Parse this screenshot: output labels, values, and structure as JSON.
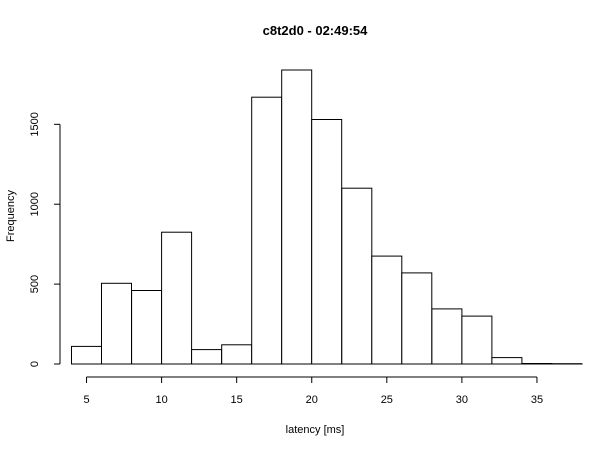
{
  "chart_data": {
    "type": "bar",
    "title": "c8t2d0 - 02:49:54",
    "xlabel": "latency [ms]",
    "ylabel": "Frequency",
    "bin_edges": [
      4,
      6,
      8,
      10,
      12,
      14,
      16,
      18,
      20,
      22,
      24,
      26,
      28,
      30,
      32,
      34,
      36,
      38
    ],
    "values": [
      110,
      505,
      460,
      825,
      90,
      120,
      1670,
      1840,
      1530,
      1100,
      675,
      570,
      345,
      300,
      40,
      3,
      2
    ],
    "xlim": [
      2.5,
      38
    ],
    "ylim": [
      0,
      1840
    ],
    "x_ticks": [
      5,
      10,
      15,
      20,
      25,
      30,
      35
    ],
    "y_ticks": [
      0,
      500,
      1000,
      1500
    ],
    "grid": false,
    "bar_fill": "#ffffff",
    "bar_stroke": "#000000"
  }
}
